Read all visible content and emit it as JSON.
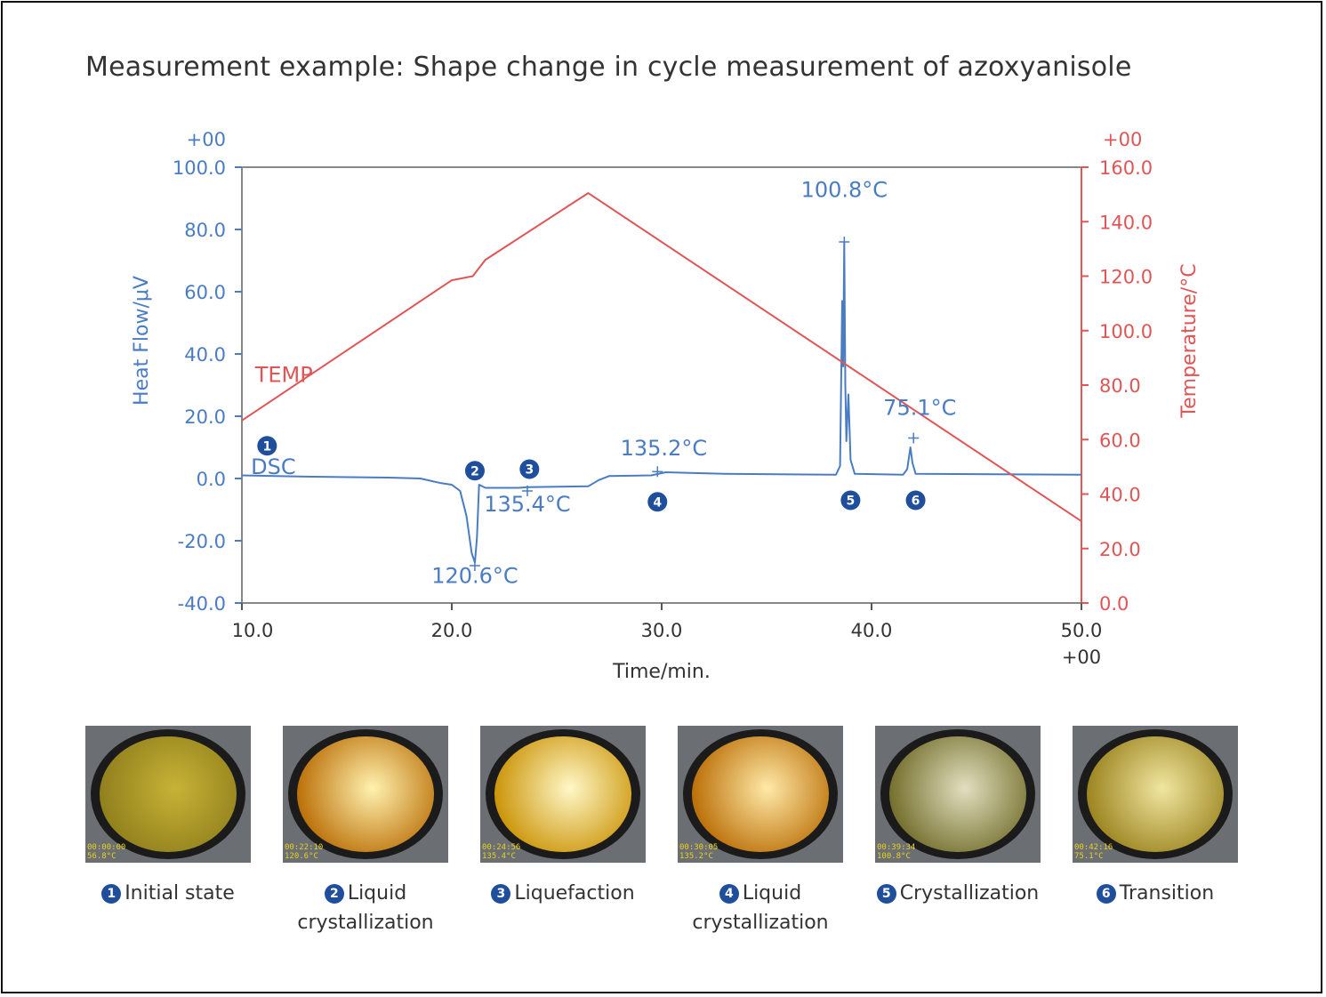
{
  "title": "Measurement example: Shape change in cycle measurement of azoxyanisole",
  "chart_data": {
    "type": "line",
    "xlabel": "Time/min.",
    "x_multiplier_label": "+00",
    "xlim": [
      10,
      50
    ],
    "xticks": [
      "10.0",
      "20.0",
      "30.0",
      "40.0",
      "50.0"
    ],
    "y_left": {
      "label": "Heat Flow/μV",
      "multiplier_label": "+00",
      "lim": [
        -40,
        100
      ],
      "ticks": [
        "100.0",
        "80.0",
        "60.0",
        "40.0",
        "20.0",
        "0.0",
        "-20.0",
        "-40.0"
      ]
    },
    "y_right": {
      "label": "Temperature/°C",
      "multiplier_label": "+00",
      "lim": [
        0,
        160
      ],
      "ticks": [
        "160.0",
        "140.0",
        "120.0",
        "100.0",
        "80.0",
        "60.0",
        "40.0",
        "20.0",
        "0.0"
      ]
    },
    "series": [
      {
        "name": "DSC",
        "axis": "left",
        "color": "#4a7cc4",
        "points": [
          [
            10,
            1
          ],
          [
            13,
            0.6
          ],
          [
            17,
            0.3
          ],
          [
            18.5,
            0
          ],
          [
            19.5,
            -1.5
          ],
          [
            20,
            -2
          ],
          [
            20.4,
            -4
          ],
          [
            20.7,
            -12
          ],
          [
            20.95,
            -24
          ],
          [
            21.1,
            -27
          ],
          [
            21.2,
            -19
          ],
          [
            21.3,
            -2
          ],
          [
            21.6,
            -3
          ],
          [
            22.8,
            -3
          ],
          [
            23.2,
            -3
          ],
          [
            23.6,
            -2.8
          ],
          [
            26.5,
            -2.5
          ],
          [
            27,
            -0.5
          ],
          [
            27.5,
            0.8
          ],
          [
            29.5,
            1
          ],
          [
            30.2,
            2
          ],
          [
            33,
            1.5
          ],
          [
            38.3,
            1.2
          ],
          [
            38.5,
            4
          ],
          [
            38.6,
            57
          ],
          [
            38.65,
            36
          ],
          [
            38.7,
            76
          ],
          [
            38.75,
            30
          ],
          [
            38.8,
            12
          ],
          [
            38.9,
            27
          ],
          [
            39.0,
            6
          ],
          [
            39.2,
            1.5
          ],
          [
            41.5,
            1.2
          ],
          [
            41.7,
            3
          ],
          [
            41.85,
            10
          ],
          [
            41.95,
            5
          ],
          [
            42.1,
            1.5
          ],
          [
            50,
            1.2
          ]
        ]
      },
      {
        "name": "TEMP",
        "axis": "right",
        "color": "#e05555",
        "points": [
          [
            10,
            67
          ],
          [
            20,
            118.5
          ],
          [
            21,
            120
          ],
          [
            21.6,
            126
          ],
          [
            26.5,
            150.5
          ],
          [
            50,
            30
          ]
        ]
      }
    ],
    "annotations": [
      {
        "text": "100.8°C",
        "x": 38.7,
        "y": 90.5,
        "axis": "left",
        "color": "#4a7cc4"
      },
      {
        "text": "75.1°C",
        "x": 42.3,
        "y": 20.5,
        "axis": "left",
        "color": "#4a7cc4"
      },
      {
        "text": "135.2°C",
        "x": 30.1,
        "y": 7.5,
        "axis": "left",
        "color": "#4a7cc4"
      },
      {
        "text": "135.4°C",
        "x": 23.6,
        "y": -10.5,
        "axis": "left",
        "color": "#4a7cc4"
      },
      {
        "text": "120.6°C",
        "x": 21.1,
        "y": -33.5,
        "axis": "left",
        "color": "#4a7cc4"
      },
      {
        "text": "DSC",
        "x": 11.5,
        "y": 1.5,
        "axis": "left",
        "color": "#4a7cc4"
      },
      {
        "text": "TEMP",
        "x": 12.0,
        "y": 31,
        "axis": "left",
        "color": "#e05555"
      }
    ],
    "markers": [
      {
        "num": "1",
        "x": 11.2,
        "y": 10.5
      },
      {
        "num": "2",
        "x": 21.1,
        "y": 2.5
      },
      {
        "num": "3",
        "x": 23.7,
        "y": 3.0
      },
      {
        "num": "4",
        "x": 29.8,
        "y": -7.5
      },
      {
        "num": "5",
        "x": 39.0,
        "y": -7.0
      },
      {
        "num": "6",
        "x": 42.1,
        "y": -7.0
      }
    ],
    "peak_ticks": [
      {
        "x": 38.7,
        "y": 76
      },
      {
        "x": 42.0,
        "y": 13
      },
      {
        "x": 29.8,
        "y": 2.2
      },
      {
        "x": 23.6,
        "y": -4
      },
      {
        "x": 21.1,
        "y": -28
      }
    ]
  },
  "photos": [
    {
      "num": "1",
      "caption1": "Initial state",
      "caption2": "",
      "stamp1": "00:00:00",
      "stamp2": "56.8°C",
      "inner": "#c8b236",
      "outer": "#8e7e1c"
    },
    {
      "num": "2",
      "caption1": "Liquid",
      "caption2": "crystallization",
      "stamp1": "00:22:10",
      "stamp2": "120.6°C",
      "inner": "#fff2b0",
      "outer": "#b86a00"
    },
    {
      "num": "3",
      "caption1": "Liquefaction",
      "caption2": "",
      "stamp1": "00:24:56",
      "stamp2": "135.4°C",
      "inner": "#fff8c8",
      "outer": "#c99000"
    },
    {
      "num": "4",
      "caption1": "Liquid",
      "caption2": "crystallization",
      "stamp1": "00:30:05",
      "stamp2": "135.2°C",
      "inner": "#ffe9a8",
      "outer": "#b86a00"
    },
    {
      "num": "5",
      "caption1": "Crystallization",
      "caption2": "",
      "stamp1": "00:39:34",
      "stamp2": "100.8°C",
      "inner": "#e2dfc0",
      "outer": "#6f6a26"
    },
    {
      "num": "6",
      "caption1": "Transition",
      "caption2": "",
      "stamp1": "00:42:16",
      "stamp2": "75.1°C",
      "inner": "#f0e6a0",
      "outer": "#98801a"
    }
  ]
}
